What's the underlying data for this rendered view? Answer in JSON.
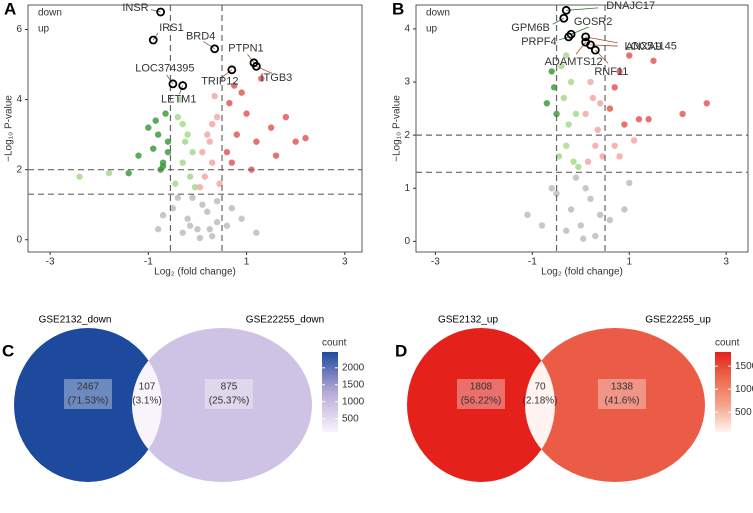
{
  "chart_data": [
    {
      "type": "scatter",
      "panel": "A",
      "xlabel": "Log₂ (fold change)",
      "ylabel": "−Log₁₀ P-value",
      "xlim": [
        -3.45,
        3.35
      ],
      "ylim": [
        -0.35,
        6.7
      ],
      "xticks": [
        -3,
        -1,
        1,
        3
      ],
      "yticks": [
        0,
        2,
        4,
        6
      ],
      "thresholds": {
        "x": [
          -0.55,
          0.5
        ],
        "y": [
          1.3,
          2
        ]
      },
      "legend": "top-left",
      "series": [
        {
          "name": "down",
          "color": "#3f9b3f",
          "x": [
            -0.6,
            -0.8,
            -0.7,
            -0.9,
            -1.0,
            -0.65,
            -1.2,
            -0.75,
            -0.85,
            -1.4,
            -0.6,
            -0.7
          ],
          "values": [
            2.5,
            3.0,
            2.2,
            2.6,
            3.2,
            3.6,
            2.4,
            2.0,
            3.4,
            1.9,
            2.8,
            2.1
          ]
        },
        {
          "name": "up",
          "color": "#e05a55",
          "x": [
            0.6,
            0.8,
            0.7,
            1.0,
            1.2,
            1.5,
            0.9,
            1.3,
            1.8,
            2.0,
            2.2,
            1.6,
            0.65,
            1.1,
            0.75
          ],
          "values": [
            2.5,
            3.0,
            2.2,
            3.6,
            2.8,
            3.2,
            4.2,
            4.6,
            3.5,
            2.8,
            2.9,
            2.4,
            3.9,
            2.0,
            4.4
          ]
        },
        {
          "color": "#a6d98f",
          "x": [
            -0.1,
            -0.2,
            -0.3,
            -0.4,
            -0.15,
            -0.35,
            -0.25,
            -0.45,
            -0.05,
            -0.3,
            -1.8,
            -2.4
          ],
          "values": [
            2.5,
            3.0,
            2.2,
            3.5,
            1.8,
            4.0,
            2.8,
            1.6,
            1.5,
            3.3,
            1.9,
            1.8
          ]
        },
        {
          "color": "#f4a7a5",
          "x": [
            0.1,
            0.2,
            0.3,
            0.4,
            0.15,
            0.35,
            0.25,
            0.45,
            0.05,
            0.3
          ],
          "values": [
            2.5,
            3.0,
            2.2,
            3.5,
            1.8,
            4.1,
            2.8,
            1.6,
            1.5,
            3.3
          ]
        },
        {
          "color": "#bdbdbd",
          "x": [
            0,
            0.2,
            -0.2,
            0.1,
            -0.3,
            0.4,
            -0.1,
            0.3,
            -0.5,
            0.6,
            -0.8,
            0.9,
            0.05,
            -0.15,
            0.25,
            0.4,
            -0.4,
            0.7,
            -0.7,
            1.2
          ],
          "values": [
            0.3,
            0.8,
            0.6,
            1.0,
            0.2,
            0.5,
            1.2,
            0.1,
            0.9,
            0.4,
            0.3,
            0.6,
            0.05,
            0.4,
            0.3,
            1.1,
            1.2,
            0.9,
            0.7,
            0.2
          ]
        }
      ],
      "genes": [
        {
          "label": "INSR",
          "x": -0.75,
          "y": 6.5,
          "color": "#2e7d32"
        },
        {
          "label": "IRS1",
          "x": -0.9,
          "y": 5.7,
          "color": "#2e7d32"
        },
        {
          "label": "LOC374395",
          "x": -0.5,
          "y": 4.45,
          "color": "#2e7d32"
        },
        {
          "label": "LETM1",
          "x": -0.3,
          "y": 4.4,
          "color": "#2e7d32"
        },
        {
          "label": "BRD4",
          "x": 0.35,
          "y": 5.45,
          "color": "#a0522d"
        },
        {
          "label": "PTPN1",
          "x": 1.15,
          "y": 5.05,
          "color": "#a0522d"
        },
        {
          "label": "TRIP12",
          "x": 0.7,
          "y": 4.85,
          "color": "#a0522d"
        },
        {
          "label": "ITGB3",
          "x": 1.2,
          "y": 4.95,
          "color": "#a0522d"
        }
      ]
    },
    {
      "type": "scatter",
      "panel": "B",
      "xlabel": "Log₂ (fold change)",
      "ylabel": "−Log₁₀ P-value",
      "xlim": [
        -3.4,
        3.45
      ],
      "ylim": [
        -0.2,
        4.45
      ],
      "xticks": [
        -3,
        -1,
        1,
        3
      ],
      "yticks": [
        0,
        1,
        2,
        3,
        4
      ],
      "thresholds": {
        "x": [
          -0.5,
          0.5
        ],
        "y": [
          1.3,
          2
        ]
      },
      "legend": "top-left",
      "series": [
        {
          "name": "down",
          "color": "#3f9b3f",
          "x": [
            -0.6,
            -0.55,
            -0.7,
            -0.5
          ],
          "values": [
            3.2,
            2.9,
            2.6,
            2.4
          ]
        },
        {
          "name": "up",
          "color": "#e05a55",
          "x": [
            0.6,
            0.8,
            1.0,
            1.2,
            1.4,
            1.5,
            2.1,
            2.6,
            0.7,
            0.9
          ],
          "values": [
            2.5,
            3.2,
            3.5,
            2.3,
            2.3,
            3.4,
            2.4,
            2.6,
            2.9,
            2.2
          ]
        },
        {
          "color": "#a6d98f",
          "x": [
            -0.1,
            -0.2,
            -0.3,
            -0.4,
            -0.15,
            -0.35,
            -0.25,
            -0.45,
            -0.05,
            -0.3
          ],
          "values": [
            2.4,
            3.0,
            1.8,
            3.3,
            1.5,
            2.7,
            2.2,
            1.6,
            1.4,
            3.5
          ]
        },
        {
          "color": "#f4a7a5",
          "x": [
            0.1,
            0.2,
            0.3,
            0.4,
            0.15,
            0.35,
            0.25,
            0.45,
            0.7,
            1.1,
            0.8
          ],
          "values": [
            2.4,
            3.0,
            1.8,
            2.6,
            1.5,
            2.1,
            2.7,
            1.6,
            1.8,
            1.9,
            1.6
          ]
        },
        {
          "color": "#bdbdbd",
          "x": [
            0,
            0.2,
            -0.2,
            0.1,
            -0.3,
            0.4,
            -0.1,
            0.3,
            -0.5,
            0.6,
            -0.8,
            0.9,
            -1.1,
            1.0,
            0.05,
            -0.6
          ],
          "values": [
            0.3,
            0.8,
            0.6,
            1.0,
            0.2,
            0.5,
            1.2,
            0.1,
            0.9,
            0.4,
            0.3,
            0.6,
            0.5,
            1.1,
            0.05,
            1.0
          ]
        }
      ],
      "genes": [
        {
          "label": "DNAJC17",
          "x": -0.3,
          "y": 4.35,
          "color": "#2e7d32"
        },
        {
          "label": "GPM6B",
          "x": -0.35,
          "y": 4.2,
          "color": "#2e7d32"
        },
        {
          "label": "GOSR2",
          "x": -0.2,
          "y": 3.9,
          "color": "#2e7d32"
        },
        {
          "label": "PRPF4",
          "x": -0.25,
          "y": 3.85,
          "color": "#2e7d32"
        },
        {
          "label": "ANXA9",
          "x": 0.1,
          "y": 3.85,
          "color": "#a0522d"
        },
        {
          "label": "LOC51145",
          "x": 0.2,
          "y": 3.7,
          "color": "#a0522d"
        },
        {
          "label": "ADAMTS12",
          "x": 0.1,
          "y": 3.75,
          "color": "#a0522d"
        },
        {
          "label": "RNF11",
          "x": 0.3,
          "y": 3.6,
          "color": "#a0522d"
        }
      ]
    },
    {
      "type": "venn",
      "panel": "C",
      "sets": [
        "GSE2132_down",
        "GSE22255_down"
      ],
      "values": [
        2467,
        107,
        875
      ],
      "percent_labels": [
        "(71.53%)",
        "(3.1%)",
        "(25.37%)"
      ],
      "colorbar": {
        "title": "count",
        "lim": [
          107,
          2467
        ],
        "ticks": [
          500,
          1000,
          1500,
          2000
        ],
        "colors": [
          "#f7f5fb",
          "#b8a8d8",
          "#1e4a9e"
        ]
      }
    },
    {
      "type": "venn",
      "panel": "D",
      "sets": [
        "GSE2132_up",
        "GSE22255_up"
      ],
      "values": [
        1808,
        70,
        1338
      ],
      "percent_labels": [
        "(56.22%)",
        "(2.18%)",
        "(41.6%)"
      ],
      "colorbar": {
        "title": "count",
        "lim": [
          70,
          1808
        ],
        "ticks": [
          500,
          1000,
          1500
        ],
        "colors": [
          "#fff4f0",
          "#f4a58c",
          "#ec6a50",
          "#e4221b"
        ]
      }
    }
  ]
}
